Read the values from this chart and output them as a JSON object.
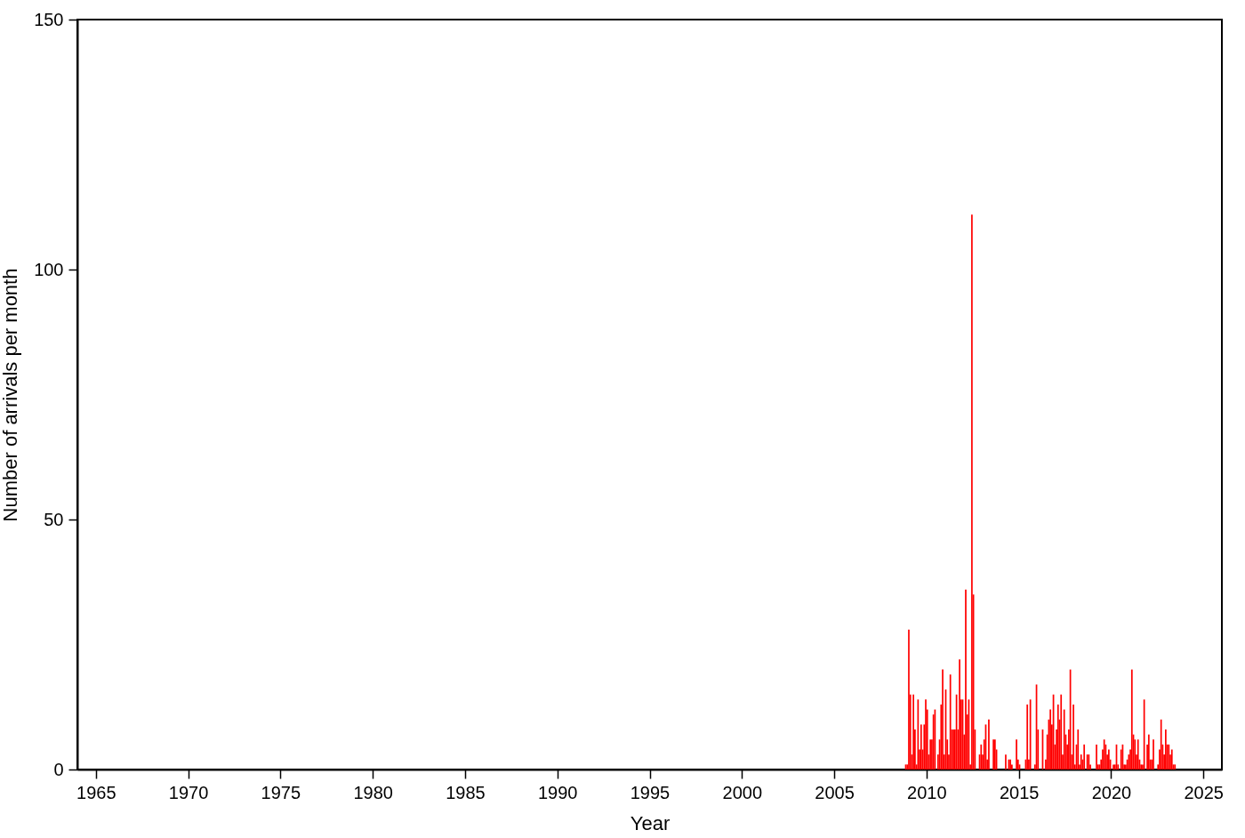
{
  "chart_data": {
    "type": "histogram",
    "xlabel": "Year",
    "ylabel": "Number of arrivals per month",
    "bins": [
      2008.833,
      2008.917,
      2009.0,
      2009.083,
      2009.167,
      2009.25,
      2009.333,
      2009.417,
      2009.5,
      2009.583,
      2009.667,
      2009.75,
      2009.833,
      2009.917,
      2010.0,
      2010.083,
      2010.167,
      2010.25,
      2010.333,
      2010.417,
      2010.5,
      2010.583,
      2010.667,
      2010.75,
      2010.833,
      2010.917,
      2011.0,
      2011.083,
      2011.167,
      2011.25,
      2011.333,
      2011.417,
      2011.5,
      2011.583,
      2011.667,
      2011.75,
      2011.833,
      2011.917,
      2012.0,
      2012.083,
      2012.167,
      2012.25,
      2012.333,
      2012.417,
      2012.5,
      2012.583,
      2012.667,
      2012.75,
      2012.833,
      2012.917,
      2013.0,
      2013.083,
      2013.167,
      2013.25,
      2013.333,
      2013.417,
      2013.5,
      2013.583,
      2013.667,
      2013.75,
      2013.833,
      2013.917,
      2014.0,
      2014.083,
      2014.167,
      2014.25,
      2014.333,
      2014.417,
      2014.5,
      2014.583,
      2014.667,
      2014.75,
      2014.833,
      2014.917,
      2015.0,
      2015.083,
      2015.167,
      2015.25,
      2015.333,
      2015.417,
      2015.5,
      2015.583,
      2015.667,
      2015.75,
      2015.833,
      2015.917,
      2016.0,
      2016.083,
      2016.167,
      2016.25,
      2016.333,
      2016.417,
      2016.5,
      2016.583,
      2016.667,
      2016.75,
      2016.833,
      2016.917,
      2017.0,
      2017.083,
      2017.167,
      2017.25,
      2017.333,
      2017.417,
      2017.5,
      2017.583,
      2017.667,
      2017.75,
      2017.833,
      2017.917,
      2018.0,
      2018.083,
      2018.167,
      2018.25,
      2018.333,
      2018.417,
      2018.5,
      2018.583,
      2018.667,
      2018.75,
      2018.833,
      2018.917,
      2019.0,
      2019.083,
      2019.167,
      2019.25,
      2019.333,
      2019.417,
      2019.5,
      2019.583,
      2019.667,
      2019.75,
      2019.833,
      2019.917,
      2020.0,
      2020.083,
      2020.167,
      2020.25,
      2020.333,
      2020.417,
      2020.5,
      2020.583,
      2020.667,
      2020.75,
      2020.833,
      2020.917,
      2021.0,
      2021.083,
      2021.167,
      2021.25,
      2021.333,
      2021.417,
      2021.5,
      2021.583,
      2021.667,
      2021.75,
      2021.833,
      2021.917,
      2022.0,
      2022.083,
      2022.167,
      2022.25,
      2022.333,
      2022.417,
      2022.5,
      2022.583,
      2022.667,
      2022.75,
      2022.833,
      2022.917,
      2023.0,
      2023.083,
      2023.167,
      2023.25,
      2023.333,
      2023.417,
      2023.5
    ],
    "values": [
      1,
      1,
      28,
      15,
      3,
      15,
      8,
      1,
      14,
      4,
      9,
      4,
      9,
      14,
      12,
      3,
      6,
      6,
      11,
      12,
      0,
      3,
      6,
      13,
      20,
      3,
      16,
      6,
      3,
      19,
      8,
      8,
      8,
      15,
      8,
      22,
      14,
      14,
      7,
      36,
      11,
      14,
      1,
      111,
      35,
      8,
      0,
      0,
      3,
      5,
      3,
      6,
      9,
      2,
      10,
      0,
      0,
      6,
      6,
      4,
      0,
      0,
      0,
      0,
      0,
      3,
      0,
      2,
      2,
      1,
      0,
      0,
      6,
      2,
      1,
      0,
      0,
      0,
      2,
      13,
      2,
      14,
      0,
      0,
      1,
      17,
      8,
      0,
      0,
      8,
      0,
      2,
      7,
      10,
      12,
      9,
      15,
      5,
      8,
      13,
      10,
      15,
      3,
      12,
      7,
      5,
      8,
      20,
      3,
      13,
      1,
      5,
      8,
      1,
      3,
      2,
      5,
      0,
      3,
      3,
      1,
      0,
      0,
      0,
      5,
      1,
      1,
      2,
      4,
      6,
      5,
      3,
      4,
      2,
      0,
      1,
      1,
      5,
      1,
      0,
      4,
      5,
      1,
      1,
      2,
      3,
      4,
      20,
      7,
      6,
      3,
      6,
      2,
      1,
      1,
      14,
      0,
      5,
      7,
      2,
      2,
      6,
      0,
      0,
      1,
      4,
      10,
      5,
      3,
      8,
      5,
      5,
      3,
      4,
      1,
      1
    ],
    "color": "#ff0000",
    "xlim": [
      1964,
      2026
    ],
    "xticks": [
      1965,
      1970,
      1975,
      1980,
      1985,
      1990,
      1995,
      2000,
      2005,
      2010,
      2015,
      2020,
      2025
    ],
    "ylim": [
      0,
      150
    ],
    "yticks": [
      0,
      50,
      100,
      150
    ],
    "grid": false
  }
}
